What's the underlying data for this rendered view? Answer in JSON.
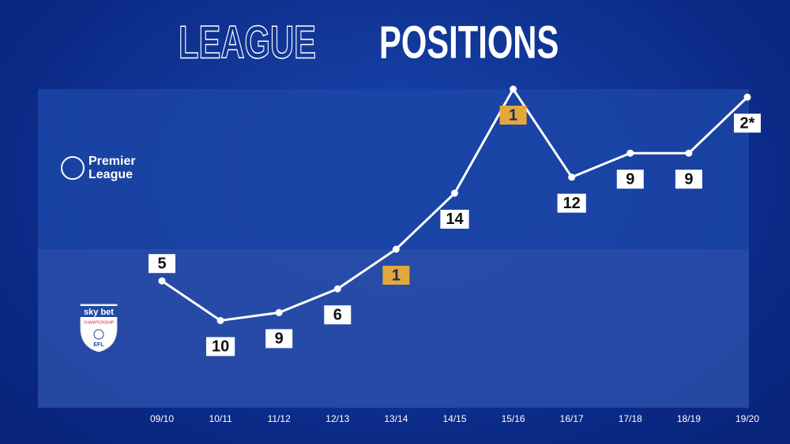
{
  "chart_data": {
    "type": "line",
    "title": [
      "LEAGUE",
      "POSITIONS"
    ],
    "categories": [
      "09/10",
      "10/11",
      "11/12",
      "12/13",
      "13/14",
      "14/15",
      "15/16",
      "16/17",
      "17/18",
      "18/19",
      "19/20"
    ],
    "series": [
      {
        "name": "Premier League",
        "values": [
          null,
          null,
          null,
          null,
          null,
          14,
          1,
          12,
          9,
          9,
          2
        ],
        "value_labels": [
          null,
          null,
          null,
          null,
          null,
          "14",
          "1",
          "12",
          "9",
          "9",
          "2*"
        ],
        "ylim": [
          21,
          1
        ],
        "band_color": "#1b45a6"
      },
      {
        "name": "CHAMPIONSHIP",
        "values": [
          5,
          10,
          9,
          6,
          1,
          null,
          null,
          null,
          null,
          null,
          null
        ],
        "value_labels": [
          "5",
          "10",
          "9",
          "6",
          "1",
          null,
          null,
          null,
          null,
          null,
          null
        ],
        "ylim": [
          21,
          1
        ],
        "band_color": "#2a4fa9",
        "logo_texts": [
          "sky bet",
          "EFL"
        ]
      }
    ],
    "line_color": "#ffffff",
    "label_color": "#ffffff",
    "highlight_color": "#e3a83c"
  }
}
